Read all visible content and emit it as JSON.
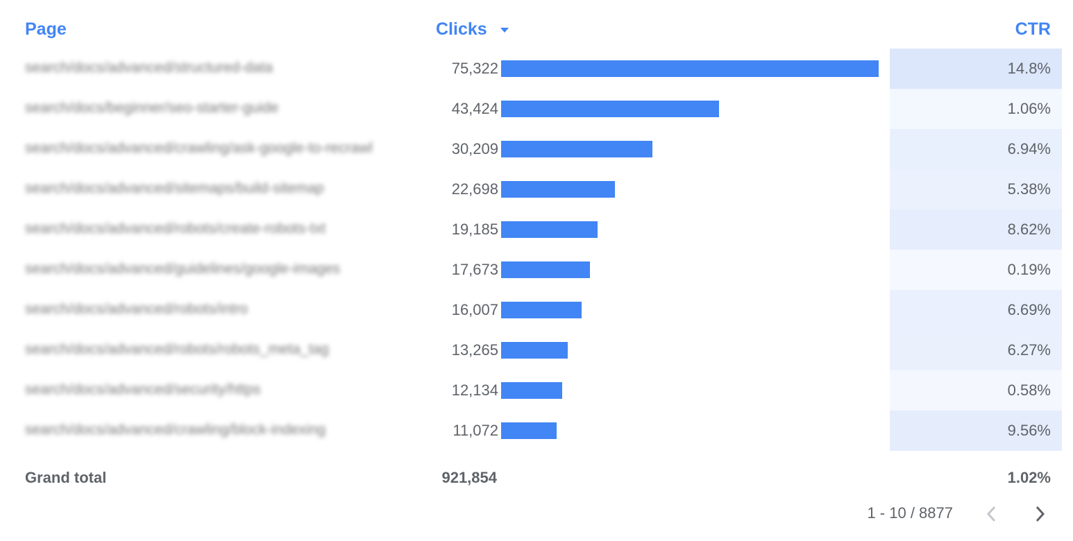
{
  "header": {
    "page": "Page",
    "clicks": "Clicks",
    "ctr": "CTR",
    "sort_icon": "triangle-down-icon"
  },
  "colors": {
    "bar": "#4285f4",
    "header": "#4285f4",
    "heat_low": "#f5f8fe",
    "heat_high": "#dce7fc"
  },
  "rows": [
    {
      "page": "search/docs/advanced/structured-data",
      "clicks": "75,322",
      "clicks_value": 75322,
      "ctr": "14.8%",
      "ctr_value": 14.8
    },
    {
      "page": "search/docs/beginner/seo-starter-guide",
      "clicks": "43,424",
      "clicks_value": 43424,
      "ctr": "1.06%",
      "ctr_value": 1.06
    },
    {
      "page": "search/docs/advanced/crawling/ask-google-to-recrawl",
      "clicks": "30,209",
      "clicks_value": 30209,
      "ctr": "6.94%",
      "ctr_value": 6.94
    },
    {
      "page": "search/docs/advanced/sitemaps/build-sitemap",
      "clicks": "22,698",
      "clicks_value": 22698,
      "ctr": "5.38%",
      "ctr_value": 5.38
    },
    {
      "page": "search/docs/advanced/robots/create-robots-txt",
      "clicks": "19,185",
      "clicks_value": 19185,
      "ctr": "8.62%",
      "ctr_value": 8.62
    },
    {
      "page": "search/docs/advanced/guidelines/google-images",
      "clicks": "17,673",
      "clicks_value": 17673,
      "ctr": "0.19%",
      "ctr_value": 0.19
    },
    {
      "page": "search/docs/advanced/robots/intro",
      "clicks": "16,007",
      "clicks_value": 16007,
      "ctr": "6.69%",
      "ctr_value": 6.69
    },
    {
      "page": "search/docs/advanced/robots/robots_meta_tag",
      "clicks": "13,265",
      "clicks_value": 13265,
      "ctr": "6.27%",
      "ctr_value": 6.27
    },
    {
      "page": "search/docs/advanced/security/https",
      "clicks": "12,134",
      "clicks_value": 12134,
      "ctr": "0.58%",
      "ctr_value": 0.58
    },
    {
      "page": "search/docs/advanced/crawling/block-indexing",
      "clicks": "11,072",
      "clicks_value": 11072,
      "ctr": "9.56%",
      "ctr_value": 9.56
    }
  ],
  "total": {
    "label": "Grand total",
    "clicks": "921,854",
    "ctr": "1.02%"
  },
  "pagination": {
    "range": "1 - 10 / 8877",
    "prev_icon": "chevron-left-icon",
    "next_icon": "chevron-right-icon"
  }
}
